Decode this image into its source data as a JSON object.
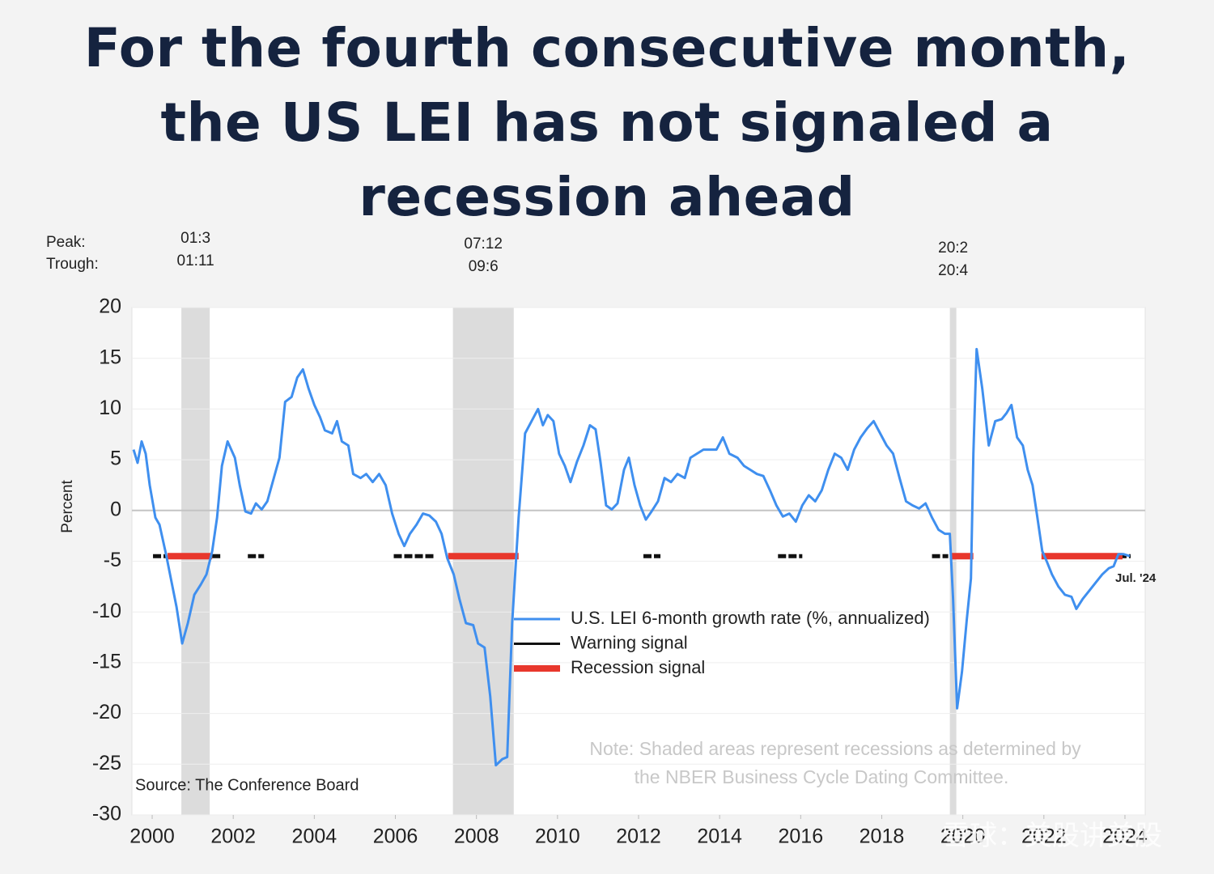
{
  "chart_data": {
    "type": "line",
    "title": "For the fourth consecutive month, the US LEI has not signaled a recession ahead",
    "y_label": "Percent",
    "xlim": [
      2000,
      2025
    ],
    "ylim": [
      -30,
      20
    ],
    "xticks": [
      {
        "value": 2000.5,
        "label": "2000"
      },
      {
        "value": 2002.5,
        "label": "2002"
      },
      {
        "value": 2004.5,
        "label": "2004"
      },
      {
        "value": 2006.5,
        "label": "2006"
      },
      {
        "value": 2008.5,
        "label": "2008"
      },
      {
        "value": 2010.5,
        "label": "2010"
      },
      {
        "value": 2012.5,
        "label": "2012"
      },
      {
        "value": 2014.5,
        "label": "2014"
      },
      {
        "value": 2016.5,
        "label": "2016"
      },
      {
        "value": 2018.5,
        "label": "2018"
      },
      {
        "value": 2020.5,
        "label": "2020"
      },
      {
        "value": 2022.5,
        "label": "2022"
      },
      {
        "value": 2024.5,
        "label": "2024"
      }
    ],
    "yticks": [
      -30,
      -25,
      -20,
      -15,
      -10,
      -5,
      0,
      5,
      10,
      15,
      20
    ],
    "grid": true,
    "peak_label": "Peak:",
    "trough_label": "Trough:",
    "recessions": [
      {
        "peak": "01:3",
        "trough": "01:11",
        "start": 2001.22,
        "end": 2001.92
      },
      {
        "peak": "07:12",
        "trough": "09:6",
        "start": 2007.92,
        "end": 2009.42
      },
      {
        "peak": "20:2",
        "trough": "20:4",
        "start": 2020.18,
        "end": 2020.34
      }
    ],
    "series": [
      {
        "name": "U.S. LEI 6-month growth rate (%, annualized)",
        "color": "#3f8fef",
        "x": [
          2000.04,
          2000.14,
          2000.24,
          2000.34,
          2000.44,
          2000.58,
          2000.68,
          2000.84,
          2000.98,
          2001.1,
          2001.24,
          2001.38,
          2001.54,
          2001.7,
          2001.84,
          2001.98,
          2002.1,
          2002.22,
          2002.36,
          2002.54,
          2002.66,
          2002.8,
          2002.94,
          2003.06,
          2003.2,
          2003.34,
          2003.48,
          2003.64,
          2003.78,
          2003.94,
          2004.08,
          2004.22,
          2004.36,
          2004.5,
          2004.64,
          2004.76,
          2004.94,
          2005.06,
          2005.18,
          2005.34,
          2005.46,
          2005.64,
          2005.78,
          2005.94,
          2006.1,
          2006.26,
          2006.42,
          2006.58,
          2006.72,
          2006.86,
          2007.02,
          2007.18,
          2007.34,
          2007.5,
          2007.64,
          2007.78,
          2007.94,
          2008.08,
          2008.24,
          2008.42,
          2008.54,
          2008.7,
          2008.84,
          2008.98,
          2009.14,
          2009.26,
          2009.38,
          2009.54,
          2009.7,
          2009.86,
          2010.02,
          2010.14,
          2010.26,
          2010.4,
          2010.54,
          2010.68,
          2010.82,
          2010.98,
          2011.14,
          2011.3,
          2011.44,
          2011.56,
          2011.7,
          2011.84,
          2011.98,
          2012.14,
          2012.26,
          2012.4,
          2012.54,
          2012.68,
          2012.82,
          2012.98,
          2013.14,
          2013.3,
          2013.46,
          2013.64,
          2013.78,
          2013.94,
          2014.1,
          2014.26,
          2014.42,
          2014.58,
          2014.74,
          2014.94,
          2015.1,
          2015.26,
          2015.42,
          2015.58,
          2015.74,
          2015.9,
          2016.06,
          2016.22,
          2016.38,
          2016.54,
          2016.7,
          2016.86,
          2017.02,
          2017.18,
          2017.34,
          2017.5,
          2017.66,
          2017.82,
          2017.98,
          2018.14,
          2018.3,
          2018.46,
          2018.62,
          2018.78,
          2018.94,
          2019.1,
          2019.26,
          2019.42,
          2019.58,
          2019.74,
          2019.9,
          2020.06,
          2020.18,
          2020.26,
          2020.36,
          2020.48,
          2020.6,
          2020.7,
          2020.76,
          2020.84,
          2020.98,
          2021.14,
          2021.3,
          2021.46,
          2021.58,
          2021.7,
          2021.84,
          2021.98,
          2022.1,
          2022.22,
          2022.34,
          2022.46,
          2022.58,
          2022.7,
          2022.86,
          2023.02,
          2023.18,
          2023.3,
          2023.46,
          2023.62,
          2023.78,
          2023.94,
          2024.1,
          2024.22,
          2024.34,
          2024.46,
          2024.62
        ],
        "values": [
          6.0,
          4.7,
          6.8,
          5.6,
          2.5,
          -0.7,
          -1.4,
          -4.3,
          -7.1,
          -9.5,
          -13.1,
          -11.1,
          -8.3,
          -7.3,
          -6.3,
          -4.0,
          -0.7,
          4.4,
          6.8,
          5.2,
          2.5,
          -0.1,
          -0.3,
          0.7,
          0.1,
          0.9,
          2.9,
          5.2,
          10.7,
          11.2,
          13.1,
          13.9,
          12.0,
          10.4,
          9.2,
          7.9,
          7.6,
          8.8,
          6.8,
          6.4,
          3.6,
          3.2,
          3.6,
          2.8,
          3.6,
          2.5,
          -0.3,
          -2.3,
          -3.5,
          -2.3,
          -1.4,
          -0.3,
          -0.5,
          -1.1,
          -2.3,
          -4.7,
          -6.3,
          -8.7,
          -11.1,
          -11.3,
          -13.1,
          -13.5,
          -18.3,
          -25.1,
          -24.5,
          -24.3,
          -11.1,
          -0.7,
          7.6,
          8.8,
          10.0,
          8.4,
          9.4,
          8.8,
          5.6,
          4.4,
          2.8,
          4.8,
          6.4,
          8.4,
          8.0,
          4.8,
          0.5,
          0.1,
          0.7,
          4.0,
          5.2,
          2.5,
          0.5,
          -0.9,
          -0.1,
          0.9,
          3.2,
          2.8,
          3.6,
          3.2,
          5.2,
          5.6,
          6.0,
          6.0,
          6.0,
          7.2,
          5.6,
          5.2,
          4.4,
          4.0,
          3.6,
          3.4,
          2.0,
          0.5,
          -0.6,
          -0.3,
          -1.1,
          0.5,
          1.5,
          0.9,
          2.0,
          4.0,
          5.6,
          5.2,
          4.0,
          6.0,
          7.2,
          8.1,
          8.8,
          7.6,
          6.4,
          5.6,
          3.2,
          0.9,
          0.5,
          0.2,
          0.7,
          -0.7,
          -1.9,
          -2.3,
          -2.3,
          -8.7,
          -19.5,
          -15.9,
          -10.7,
          -6.7,
          5.6,
          15.9,
          12.0,
          6.4,
          8.8,
          9.0,
          9.6,
          10.4,
          7.2,
          6.4,
          4.0,
          2.5,
          -0.7,
          -4.0,
          -5.1,
          -6.3,
          -7.5,
          -8.3,
          -8.5,
          -9.7,
          -8.7,
          -7.9,
          -7.1,
          -6.3,
          -5.7,
          -5.5,
          -4.3,
          -4.3,
          -4.5
        ]
      },
      {
        "name": "Warning signal",
        "color": "#111111",
        "level": -4.5,
        "segments": [
          [
            2000.52,
            2000.84
          ],
          [
            2001.98,
            2002.18
          ],
          [
            2002.86,
            2003.26
          ],
          [
            2006.46,
            2007.46
          ],
          [
            2012.62,
            2013.04
          ],
          [
            2015.94,
            2016.54
          ],
          [
            2019.74,
            2020.14
          ],
          [
            2024.34,
            2024.64
          ]
        ]
      },
      {
        "name": "Recession signal",
        "color": "#e8372c",
        "level": -4.5,
        "segments": [
          [
            2000.88,
            2001.98
          ],
          [
            2007.8,
            2009.54
          ],
          [
            2020.18,
            2020.76
          ],
          [
            2022.44,
            2024.44
          ]
        ]
      }
    ],
    "end_label": "Jul. '24",
    "note": [
      "Note: Shaded areas represent recessions as determined by",
      "the NBER Business Cycle Dating Committee."
    ],
    "source": "Source: The Conference Board",
    "watermark": "雪球：美股讲美股"
  }
}
